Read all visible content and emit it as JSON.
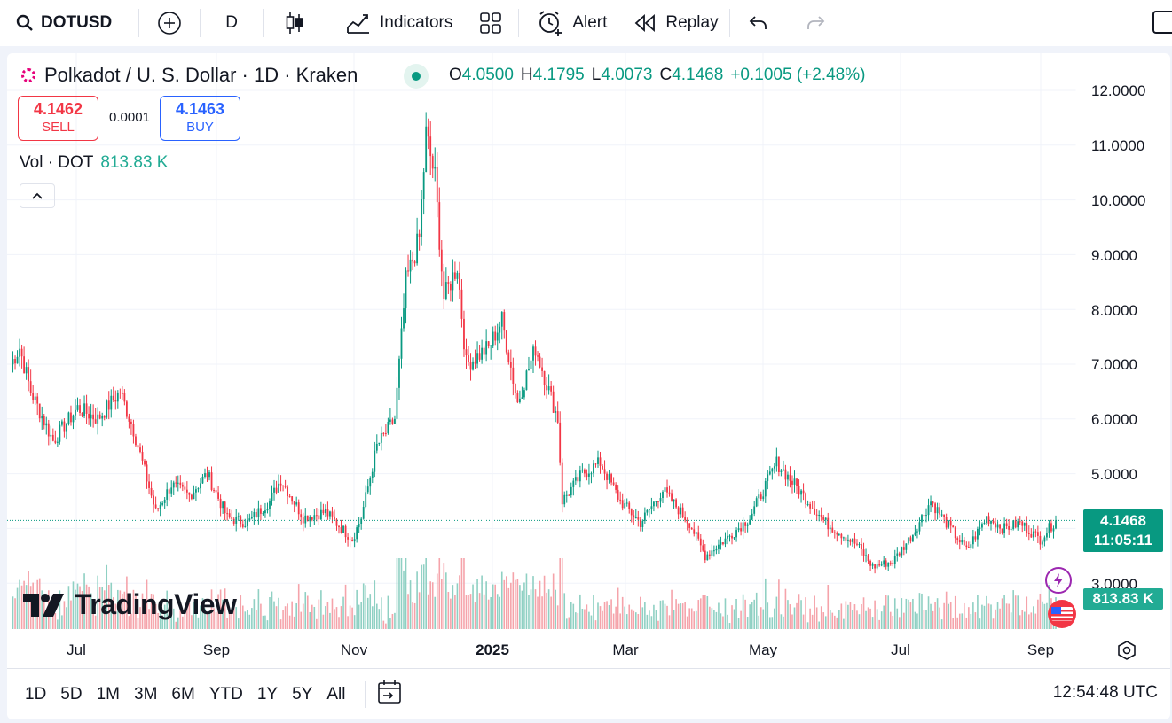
{
  "toolbar": {
    "symbol": "DOTUSD",
    "interval": "D",
    "indicators_label": "Indicators",
    "alert_label": "Alert",
    "replay_label": "Replay"
  },
  "legend": {
    "title": "Polkadot / U. S. Dollar · 1D · Kraken",
    "open_key": "O",
    "open": "4.0500",
    "high_key": "H",
    "high": "4.1795",
    "low_key": "L",
    "low": "4.0073",
    "close_key": "C",
    "close": "4.1468",
    "change": "+0.1005 (+2.48%)"
  },
  "trade": {
    "sell_price": "4.1462",
    "sell_label": "SELL",
    "spread": "0.0001",
    "buy_price": "4.1463",
    "buy_label": "BUY"
  },
  "volume": {
    "label": "Vol · DOT",
    "value": "813.83 K"
  },
  "price_axis": {
    "labels": [
      "12.0000",
      "11.0000",
      "10.0000",
      "9.0000",
      "8.0000",
      "7.0000",
      "6.0000",
      "5.0000",
      "3.0000"
    ],
    "last_price": "4.1468",
    "countdown": "11:05:11",
    "volume_tag": "813.83 K"
  },
  "time_axis": {
    "labels": [
      "Jul",
      "Sep",
      "Nov",
      "2025",
      "Mar",
      "May",
      "Jul",
      "Sep"
    ]
  },
  "logo_text": "TradingView",
  "ranges": [
    "1D",
    "5D",
    "1M",
    "3M",
    "6M",
    "YTD",
    "1Y",
    "5Y",
    "All"
  ],
  "clock": "12:54:48 UTC",
  "colors": {
    "up": "#089981",
    "down": "#f23645",
    "vol_up": "#8fd0c3",
    "vol_down": "#f5a3aa"
  },
  "chart_data": {
    "type": "candlestick",
    "symbol": "DOTUSD",
    "interval": "1D",
    "ylim": [
      2.5,
      12.5
    ],
    "anchors": [
      {
        "t": "2024-06-01",
        "close": 7.0
      },
      {
        "t": "2024-06-05",
        "close": 7.3
      },
      {
        "t": "2024-06-10",
        "close": 6.5
      },
      {
        "t": "2024-06-20",
        "close": 5.6
      },
      {
        "t": "2024-07-01",
        "close": 6.2
      },
      {
        "t": "2024-07-10",
        "close": 6.0
      },
      {
        "t": "2024-07-20",
        "close": 6.5
      },
      {
        "t": "2024-07-26",
        "close": 5.8
      },
      {
        "t": "2024-08-05",
        "close": 4.3
      },
      {
        "t": "2024-08-12",
        "close": 4.8
      },
      {
        "t": "2024-08-20",
        "close": 4.6
      },
      {
        "t": "2024-08-28",
        "close": 5.0
      },
      {
        "t": "2024-09-06",
        "close": 4.2
      },
      {
        "t": "2024-09-15",
        "close": 4.1
      },
      {
        "t": "2024-09-25",
        "close": 4.5
      },
      {
        "t": "2024-09-30",
        "close": 4.9
      },
      {
        "t": "2024-10-10",
        "close": 4.2
      },
      {
        "t": "2024-10-20",
        "close": 4.3
      },
      {
        "t": "2024-11-01",
        "close": 3.8
      },
      {
        "t": "2024-11-05",
        "close": 4.2
      },
      {
        "t": "2024-11-12",
        "close": 5.5
      },
      {
        "t": "2024-11-20",
        "close": 6.0
      },
      {
        "t": "2024-11-25",
        "close": 8.5
      },
      {
        "t": "2024-12-01",
        "close": 9.3
      },
      {
        "t": "2024-12-04",
        "close": 11.2
      },
      {
        "t": "2024-12-08",
        "close": 10.4
      },
      {
        "t": "2024-12-12",
        "close": 8.2
      },
      {
        "t": "2024-12-18",
        "close": 8.8
      },
      {
        "t": "2024-12-22",
        "close": 7.0
      },
      {
        "t": "2025-01-01",
        "close": 7.3
      },
      {
        "t": "2025-01-07",
        "close": 7.8
      },
      {
        "t": "2025-01-14",
        "close": 6.3
      },
      {
        "t": "2025-01-22",
        "close": 7.3
      },
      {
        "t": "2025-02-01",
        "close": 6.0
      },
      {
        "t": "2025-02-03",
        "close": 4.5
      },
      {
        "t": "2025-02-12",
        "close": 5.0
      },
      {
        "t": "2025-02-20",
        "close": 5.2
      },
      {
        "t": "2025-03-01",
        "close": 4.5
      },
      {
        "t": "2025-03-10",
        "close": 4.1
      },
      {
        "t": "2025-03-20",
        "close": 4.7
      },
      {
        "t": "2025-04-01",
        "close": 4.1
      },
      {
        "t": "2025-04-08",
        "close": 3.5
      },
      {
        "t": "2025-04-20",
        "close": 3.9
      },
      {
        "t": "2025-04-28",
        "close": 4.2
      },
      {
        "t": "2025-05-10",
        "close": 5.2
      },
      {
        "t": "2025-05-22",
        "close": 4.6
      },
      {
        "t": "2025-06-01",
        "close": 4.1
      },
      {
        "t": "2025-06-15",
        "close": 3.7
      },
      {
        "t": "2025-06-22",
        "close": 3.3
      },
      {
        "t": "2025-07-01",
        "close": 3.4
      },
      {
        "t": "2025-07-10",
        "close": 3.9
      },
      {
        "t": "2025-07-18",
        "close": 4.5
      },
      {
        "t": "2025-07-25",
        "close": 4.1
      },
      {
        "t": "2025-08-03",
        "close": 3.6
      },
      {
        "t": "2025-08-12",
        "close": 4.2
      },
      {
        "t": "2025-08-20",
        "close": 4.0
      },
      {
        "t": "2025-08-27",
        "close": 4.1
      },
      {
        "t": "2025-09-05",
        "close": 3.8
      },
      {
        "t": "2025-09-12",
        "close": 4.1468
      }
    ],
    "volume_last": 813830
  }
}
